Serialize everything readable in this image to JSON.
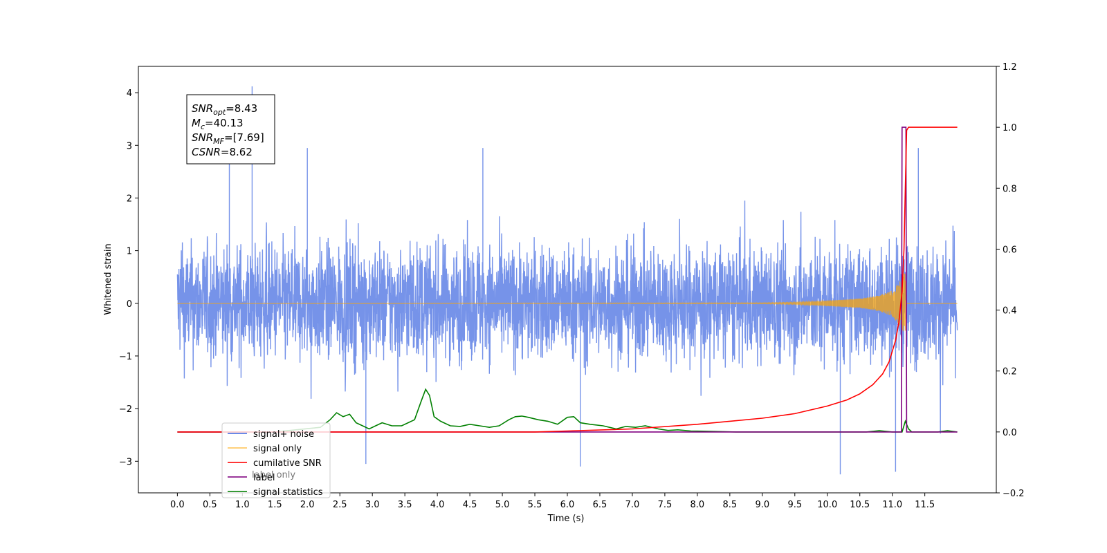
{
  "chart_data": {
    "type": "line",
    "xlabel": "Time (s)",
    "ylabel": "Whitened strain",
    "xlim": [
      -0.6,
      12.6
    ],
    "ylim": [
      -3.6,
      4.5
    ],
    "y2lim": [
      -0.2,
      1.2
    ],
    "x_ticks": [
      "0.0",
      "0.5",
      "1.0",
      "1.5",
      "2.0",
      "2.5",
      "3.0",
      "3.5",
      "4.0",
      "4.5",
      "5.0",
      "5.5",
      "6.0",
      "6.5",
      "7.0",
      "7.5",
      "8.0",
      "8.5",
      "9.0",
      "9.5",
      "10.0",
      "10.5",
      "11.0",
      "11.5"
    ],
    "y_ticks": [
      "−3",
      "−2",
      "−1",
      "0",
      "1",
      "2",
      "3",
      "4"
    ],
    "y2_ticks": [
      "−0.2",
      "0.0",
      "0.2",
      "0.4",
      "0.6",
      "0.8",
      "1.0",
      "1.2"
    ],
    "annotation": {
      "lines": [
        {
          "sym": "SNR",
          "sub": "opt",
          "value": "=8.43"
        },
        {
          "sym": "M",
          "sub": "c",
          "value": "=40.13"
        },
        {
          "sym": "SNR",
          "sub": "MF",
          "value": "=[7.69]"
        },
        {
          "sym": "CSNR",
          "sub": "",
          "value": "=8.62"
        }
      ]
    },
    "legend": {
      "position": "lower-left",
      "entries": [
        {
          "label": "signal+ noise",
          "color": "#4169e1"
        },
        {
          "label": "signal only",
          "color": "#ffa500"
        },
        {
          "label": "cumilative SNR",
          "color": "#ff0000"
        },
        {
          "label": "label",
          "color": "#800080"
        },
        {
          "label": "signal statistics",
          "color": "#008000"
        }
      ],
      "occluded_text": "label only"
    },
    "series": [
      {
        "name": "signal+ noise",
        "axis": "left",
        "color": "#4169e1",
        "x_range": [
          0.0,
          12.0
        ],
        "y_range_visible": [
          -3.25,
          4.12
        ],
        "extremes": [
          {
            "x": 1.15,
            "y": 4.12
          },
          {
            "x": 0.8,
            "y": 3.3
          },
          {
            "x": 2.0,
            "y": 2.95
          },
          {
            "x": 4.7,
            "y": 2.95
          },
          {
            "x": 11.4,
            "y": 2.95
          },
          {
            "x": 2.9,
            "y": -3.05
          },
          {
            "x": 6.2,
            "y": -3.1
          },
          {
            "x": 10.2,
            "y": -3.25
          },
          {
            "x": 11.05,
            "y": -3.2
          }
        ]
      },
      {
        "name": "signal only",
        "axis": "left",
        "color": "#ffa500",
        "x": [
          0.0,
          9.0,
          9.5,
          10.0,
          10.5,
          10.8,
          11.0,
          11.1,
          11.2,
          11.22,
          12.0
        ],
        "amplitude": [
          0.0,
          0.01,
          0.02,
          0.05,
          0.09,
          0.15,
          0.25,
          0.4,
          0.6,
          0.0,
          0.0
        ]
      },
      {
        "name": "cumilative SNR",
        "axis": "right",
        "color": "#ff0000",
        "x": [
          0.0,
          5.5,
          6.0,
          7.0,
          8.0,
          8.5,
          9.0,
          9.5,
          10.0,
          10.3,
          10.5,
          10.7,
          10.85,
          10.95,
          11.05,
          11.1,
          11.15,
          11.18,
          11.2,
          11.22,
          11.25,
          12.0
        ],
        "y": [
          0.0,
          0.0,
          0.003,
          0.01,
          0.025,
          0.035,
          0.045,
          0.06,
          0.085,
          0.105,
          0.125,
          0.155,
          0.19,
          0.23,
          0.3,
          0.36,
          0.46,
          0.6,
          0.8,
          0.99,
          1.0,
          1.0
        ]
      },
      {
        "name": "label",
        "axis": "right",
        "color": "#800080",
        "x": [
          0.0,
          11.14,
          11.15,
          11.21,
          11.22,
          12.0
        ],
        "y": [
          0.0,
          0.0,
          1.0,
          1.0,
          0.0,
          0.0
        ]
      },
      {
        "name": "signal statistics",
        "axis": "right",
        "color": "#008000",
        "x": [
          0.0,
          1.5,
          2.2,
          2.35,
          2.45,
          2.55,
          2.65,
          2.75,
          2.85,
          2.95,
          3.05,
          3.15,
          3.3,
          3.45,
          3.55,
          3.65,
          3.75,
          3.82,
          3.88,
          3.95,
          4.05,
          4.2,
          4.35,
          4.5,
          4.65,
          4.8,
          4.95,
          5.1,
          5.2,
          5.3,
          5.4,
          5.55,
          5.7,
          5.85,
          6.0,
          6.1,
          6.2,
          6.35,
          6.55,
          6.75,
          6.9,
          7.05,
          7.2,
          7.4,
          7.55,
          7.7,
          7.9,
          8.2,
          8.6,
          9.0,
          10.6,
          10.8,
          11.0,
          11.15,
          11.2,
          11.25,
          11.3,
          11.5,
          11.7,
          11.85,
          12.0
        ],
        "y": [
          0.0,
          0.0,
          0.015,
          0.04,
          0.063,
          0.05,
          0.058,
          0.03,
          0.02,
          0.01,
          0.02,
          0.03,
          0.02,
          0.02,
          0.03,
          0.04,
          0.1,
          0.14,
          0.12,
          0.05,
          0.035,
          0.02,
          0.018,
          0.025,
          0.02,
          0.015,
          0.02,
          0.04,
          0.05,
          0.052,
          0.048,
          0.04,
          0.035,
          0.025,
          0.048,
          0.05,
          0.03,
          0.025,
          0.02,
          0.01,
          0.018,
          0.015,
          0.02,
          0.01,
          0.005,
          0.007,
          0.003,
          0.002,
          0.0,
          0.0,
          0.0,
          0.004,
          0.0,
          0.0,
          0.035,
          0.01,
          0.0,
          0.0,
          0.0,
          0.004,
          0.0
        ]
      }
    ]
  }
}
